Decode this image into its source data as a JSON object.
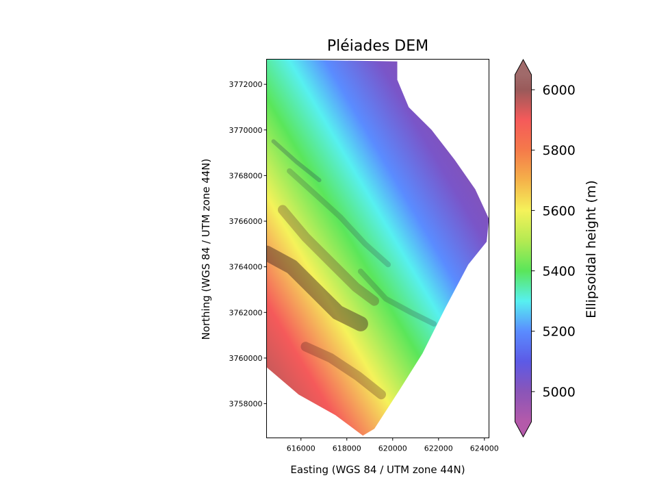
{
  "chart_data": {
    "type": "heatmap",
    "title": "Pléiades DEM",
    "xlabel": "Easting (WGS 84 / UTM zone 44N)",
    "ylabel": "Northing (WGS 84 / UTM zone 44N)",
    "xlim": [
      614500,
      624200
    ],
    "ylim": [
      3756500,
      3773100
    ],
    "x_ticks": [
      616000,
      618000,
      620000,
      622000,
      624000
    ],
    "x_tick_labels": [
      "616000",
      "618000",
      "620000",
      "622000",
      "624000"
    ],
    "y_ticks": [
      3758000,
      3760000,
      3762000,
      3764000,
      3766000,
      3768000,
      3770000,
      3772000
    ],
    "y_tick_labels": [
      "3758000",
      "3760000",
      "3762000",
      "3764000",
      "3766000",
      "3768000",
      "3770000",
      "3772000"
    ],
    "grid": false,
    "colorbar": {
      "label": "Ellipsoidal height (m)",
      "range": [
        4900,
        6050
      ],
      "extend": "both",
      "ticks": [
        5000,
        5200,
        5400,
        5600,
        5800,
        6000
      ],
      "tick_labels": [
        "5000",
        "5200",
        "5400",
        "5600",
        "5800",
        "6000"
      ],
      "colormap": "rainbow (terrain-like), semi-transparent over hillshade",
      "stops": [
        {
          "value": 4900,
          "color": "#b45aaa"
        },
        {
          "value": 5000,
          "color": "#8a55b8"
        },
        {
          "value": 5100,
          "color": "#5c5ae6"
        },
        {
          "value": 5200,
          "color": "#5a8cff"
        },
        {
          "value": 5300,
          "color": "#57f0f0"
        },
        {
          "value": 5400,
          "color": "#5ae65a"
        },
        {
          "value": 5500,
          "color": "#b4ea52"
        },
        {
          "value": 5600,
          "color": "#f5f25a"
        },
        {
          "value": 5700,
          "color": "#f5b24a"
        },
        {
          "value": 5800,
          "color": "#f57a4a"
        },
        {
          "value": 5900,
          "color": "#f55a5a"
        },
        {
          "value": 6000,
          "color": "#9a5a5a"
        },
        {
          "value": 6050,
          "color": "#a06a6a"
        }
      ]
    },
    "data_extent_outline": [
      [
        614500,
        3773100
      ],
      [
        620200,
        3773000
      ],
      [
        620200,
        3772200
      ],
      [
        620700,
        3771000
      ],
      [
        621700,
        3770000
      ],
      [
        622700,
        3768700
      ],
      [
        623600,
        3767400
      ],
      [
        624200,
        3766100
      ],
      [
        624100,
        3765100
      ],
      [
        623300,
        3764100
      ],
      [
        622300,
        3762200
      ],
      [
        621300,
        3760200
      ],
      [
        620300,
        3758600
      ],
      [
        619200,
        3756900
      ],
      [
        618700,
        3756600
      ],
      [
        617500,
        3757500
      ],
      [
        615900,
        3758400
      ],
      [
        614500,
        3759600
      ]
    ]
  }
}
